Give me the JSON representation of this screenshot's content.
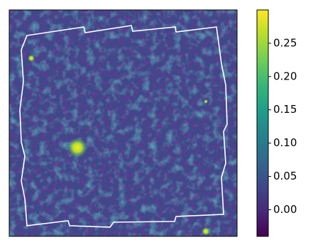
{
  "chart_data": {
    "type": "heatmap",
    "colormap": "viridis",
    "clim": [
      -0.04,
      0.3
    ],
    "cticks": [
      {
        "value": 0,
        "label": "0.00"
      },
      {
        "value": 0.05,
        "label": "0.05"
      },
      {
        "value": 0.1,
        "label": "0.10"
      },
      {
        "value": 0.15,
        "label": "0.15"
      },
      {
        "value": 0.2,
        "label": "0.20"
      },
      {
        "value": 0.25,
        "label": "0.25"
      }
    ]
  }
}
